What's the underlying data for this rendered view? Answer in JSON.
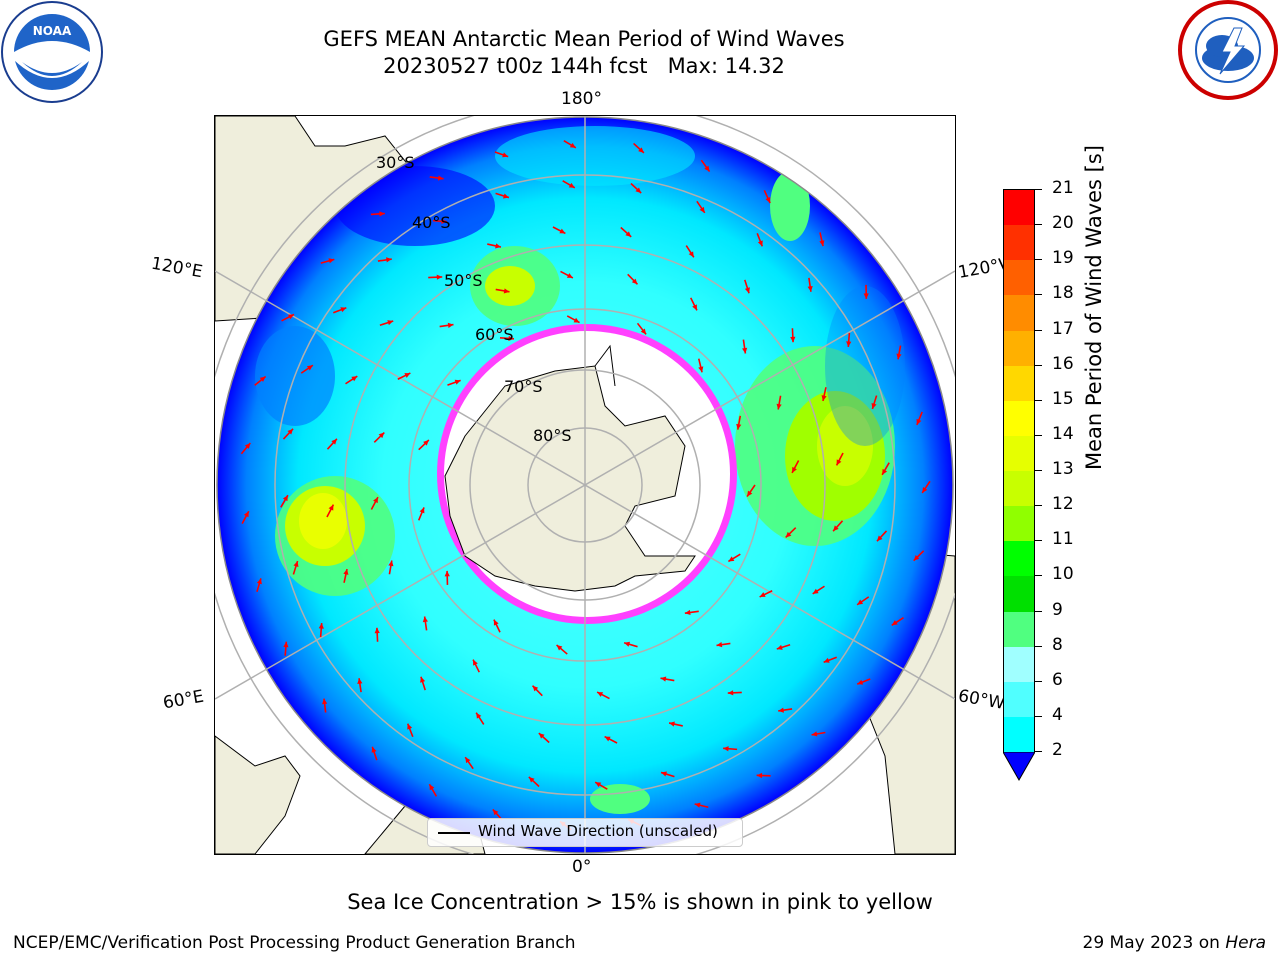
{
  "title": {
    "line1": "GEFS MEAN Antarctic Mean Period of Wind Waves",
    "line2": "20230527 t00z 144h fcst   Max: 14.32"
  },
  "map": {
    "projection": "south-polar-stereographic",
    "longitude_labels": {
      "top": "180°",
      "bottom": "0°",
      "upper_left": "120°E",
      "upper_right": "120°W",
      "lower_left": "60°E",
      "lower_right": "60°W"
    },
    "latitude_labels": [
      "30°S",
      "40°S",
      "50°S",
      "60°S",
      "70°S",
      "80°S"
    ],
    "legend_label": "Wind Wave Direction (unscaled)",
    "colors": {
      "land": "#efeedc",
      "sea_ice_edge": "#ff40ff",
      "arrows": "#ff0000",
      "gridlines": "#b0b0b0"
    }
  },
  "colorbar": {
    "label": "Mean Period of Wind Waves [s]",
    "ticks": [
      "21",
      "20",
      "19",
      "18",
      "17",
      "16",
      "15",
      "14",
      "13",
      "12",
      "11",
      "10",
      "9",
      "8",
      "6",
      "4",
      "2"
    ],
    "colors": [
      "#ff0000",
      "#ff3000",
      "#ff6000",
      "#ff8c00",
      "#ffb000",
      "#ffd800",
      "#ffff00",
      "#e6ff00",
      "#c8ff00",
      "#90ff00",
      "#00ff00",
      "#00e000",
      "#50ff80",
      "#a0ffff",
      "#50ffff",
      "#00ffff",
      "#0080ff",
      "#0000ff"
    ]
  },
  "subcaption": "Sea Ice Concentration > 15% is shown in pink to yellow",
  "footer": {
    "left": "NCEP/EMC/Verification Post Processing Product Generation Branch",
    "right_prefix": "29 May 2023 on ",
    "right_italic": "Hera"
  }
}
